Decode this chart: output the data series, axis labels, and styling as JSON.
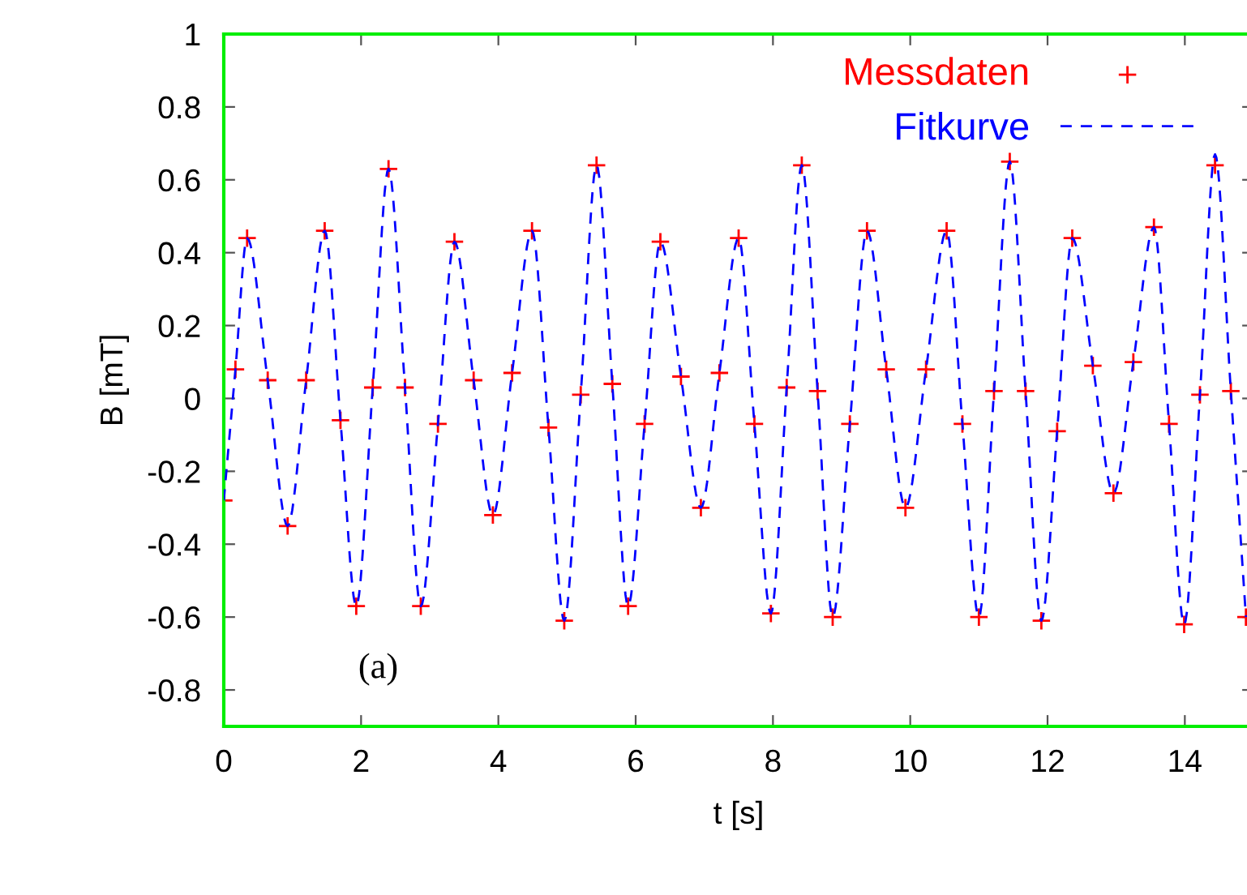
{
  "chart_data": {
    "type": "scatter",
    "xlabel": "t [s]",
    "ylabel": "B [mT]",
    "xlim": [
      0,
      15
    ],
    "xticks": [
      0,
      2,
      4,
      6,
      8,
      10,
      12,
      14
    ],
    "ylim": [
      -0.9,
      1
    ],
    "yticks": [
      -0.8,
      -0.6,
      -0.4,
      -0.2,
      0,
      0.2,
      0.4,
      0.6,
      0.8,
      1
    ],
    "grid": false,
    "legend": "top right",
    "annotations": [
      "(a)"
    ],
    "x": [
      0.0,
      0.17,
      0.34,
      0.64,
      0.93,
      1.2,
      1.47,
      1.7,
      1.93,
      2.17,
      2.4,
      2.64,
      2.87,
      3.12,
      3.36,
      3.64,
      3.92,
      4.2,
      4.49,
      4.73,
      4.96,
      5.2,
      5.43,
      5.66,
      5.89,
      6.13,
      6.36,
      6.66,
      6.95,
      7.22,
      7.5,
      7.73,
      7.97,
      8.2,
      8.42,
      8.65,
      8.87,
      9.12,
      9.37,
      9.65,
      9.93,
      10.23,
      10.53,
      10.76,
      11.0,
      11.22,
      11.45,
      11.68,
      11.91,
      12.14,
      12.36,
      12.66,
      12.96,
      13.25,
      13.55,
      13.77,
      13.99,
      14.22,
      14.44,
      14.67,
      14.89
    ],
    "series": [
      {
        "name": "Messdaten",
        "color": "#ff0000",
        "marker": "cross",
        "values": [
          -0.28,
          0.08,
          0.44,
          0.05,
          -0.35,
          0.05,
          0.46,
          -0.06,
          -0.57,
          0.03,
          0.63,
          0.03,
          -0.57,
          -0.07,
          0.43,
          0.05,
          -0.32,
          0.07,
          0.46,
          -0.08,
          -0.61,
          0.01,
          0.64,
          0.04,
          -0.57,
          -0.07,
          0.43,
          0.06,
          -0.3,
          0.07,
          0.44,
          -0.07,
          -0.59,
          0.03,
          0.64,
          0.02,
          -0.6,
          -0.07,
          0.46,
          0.08,
          -0.3,
          0.08,
          0.46,
          -0.07,
          -0.6,
          0.02,
          0.65,
          0.02,
          -0.61,
          -0.09,
          0.44,
          0.09,
          -0.26,
          0.1,
          0.47,
          -0.07,
          -0.62,
          0.01,
          0.64,
          0.02,
          -0.6
        ]
      },
      {
        "name": "Fitkurve",
        "type": "line",
        "color": "#0000ff",
        "marker": "none",
        "line_style": "dashed",
        "values": [
          -0.28,
          0.08,
          0.44,
          0.05,
          -0.35,
          0.05,
          0.46,
          -0.06,
          -0.57,
          0.03,
          0.63,
          0.03,
          -0.57,
          -0.07,
          0.43,
          0.05,
          -0.32,
          0.07,
          0.46,
          -0.08,
          -0.61,
          0.01,
          0.64,
          0.04,
          -0.57,
          -0.07,
          0.43,
          0.06,
          -0.3,
          0.07,
          0.44,
          -0.07,
          -0.59,
          0.03,
          0.64,
          0.02,
          -0.6,
          -0.07,
          0.46,
          0.08,
          -0.3,
          0.08,
          0.46,
          -0.07,
          -0.6,
          0.02,
          0.65,
          0.02,
          -0.61,
          -0.09,
          0.44,
          0.09,
          -0.26,
          0.1,
          0.47,
          -0.07,
          -0.62,
          0.01,
          0.67,
          0.02,
          -0.6
        ]
      }
    ]
  }
}
